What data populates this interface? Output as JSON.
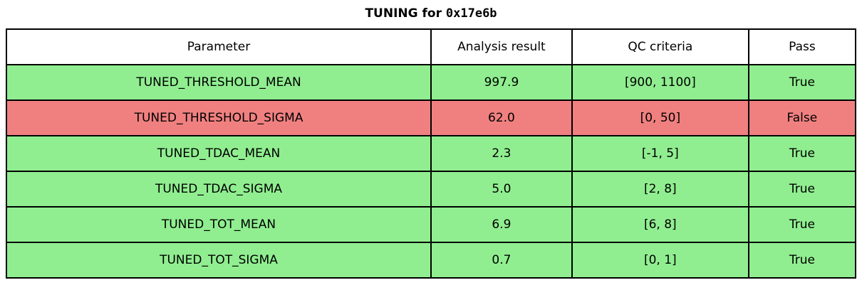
{
  "title": {
    "prefix": "TUNING for ",
    "chip_id": "0x17e6b"
  },
  "colors": {
    "pass_row": "#90ee90",
    "fail_row": "#f08080",
    "header_bg": "#ffffff",
    "border": "#000000",
    "text": "#000000"
  },
  "chart_data": {
    "type": "table",
    "title": "TUNING for 0x17e6b",
    "headers": [
      "Parameter",
      "Analysis result",
      "QC criteria",
      "Pass"
    ],
    "rows": [
      {
        "parameter": "TUNED_THRESHOLD_MEAN",
        "result": "997.9",
        "criteria": "[900, 1100]",
        "pass": "True",
        "status": "pass"
      },
      {
        "parameter": "TUNED_THRESHOLD_SIGMA",
        "result": "62.0",
        "criteria": "[0, 50]",
        "pass": "False",
        "status": "fail"
      },
      {
        "parameter": "TUNED_TDAC_MEAN",
        "result": "2.3",
        "criteria": "[-1, 5]",
        "pass": "True",
        "status": "pass"
      },
      {
        "parameter": "TUNED_TDAC_SIGMA",
        "result": "5.0",
        "criteria": "[2, 8]",
        "pass": "True",
        "status": "pass"
      },
      {
        "parameter": "TUNED_TOT_MEAN",
        "result": "6.9",
        "criteria": "[6, 8]",
        "pass": "True",
        "status": "pass"
      },
      {
        "parameter": "TUNED_TOT_SIGMA",
        "result": "0.7",
        "criteria": "[0, 1]",
        "pass": "True",
        "status": "pass"
      }
    ]
  }
}
